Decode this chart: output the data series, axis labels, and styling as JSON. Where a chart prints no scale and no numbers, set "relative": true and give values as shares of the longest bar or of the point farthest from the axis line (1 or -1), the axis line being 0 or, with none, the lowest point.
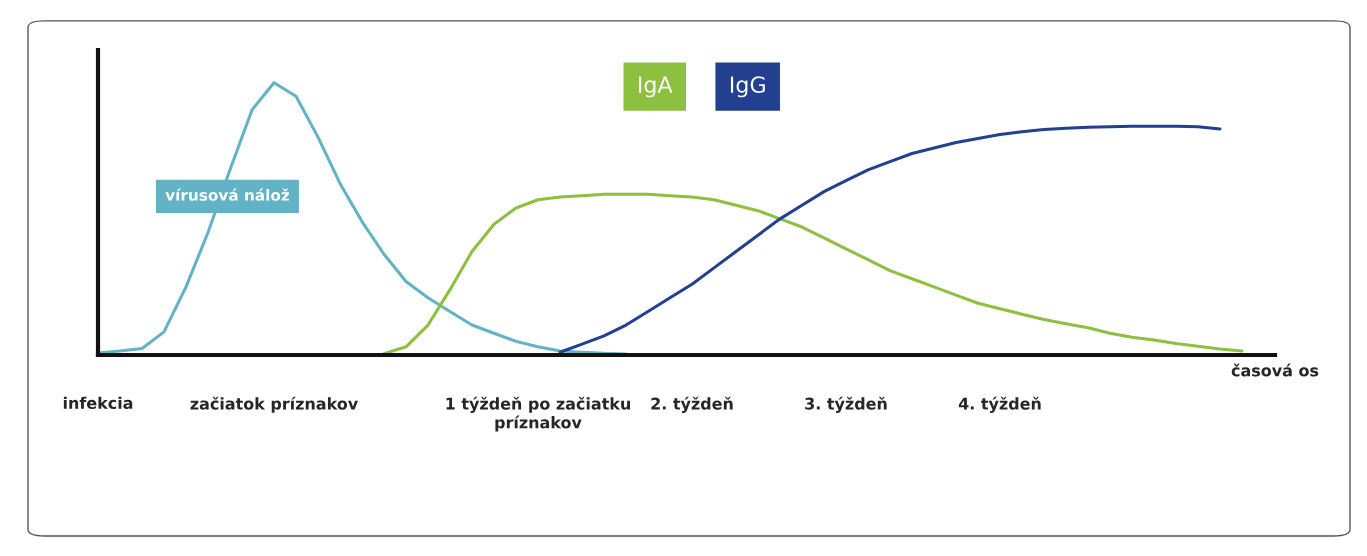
{
  "chart_data": {
    "type": "line",
    "relative": true,
    "xlabel": "časová os",
    "categories": [
      "infekcia",
      null,
      null,
      null,
      null,
      null,
      null,
      null,
      "začiatok príznakov",
      null,
      null,
      null,
      null,
      null,
      null,
      null,
      null,
      null,
      null,
      null,
      "1 týždeň po začiatku\npríznakov",
      null,
      null,
      null,
      null,
      null,
      null,
      "2. týždeň",
      null,
      null,
      null,
      null,
      null,
      null,
      "3. týždeň",
      null,
      null,
      null,
      null,
      null,
      null,
      "4. týždeň",
      null,
      null,
      null,
      null,
      null,
      null,
      null,
      null,
      null,
      null,
      null,
      null
    ],
    "tick_labels": "x",
    "legend": "top",
    "marker": "none",
    "line_style": "solid",
    "series": [
      {
        "name": "vírusová nálož",
        "color": "#62b3c6",
        "values": [
          0.007,
          0.015,
          0.024,
          0.085,
          0.25,
          0.45,
          0.68,
          0.9,
          1.0,
          0.95,
          0.8,
          0.63,
          0.49,
          0.37,
          0.27,
          0.21,
          0.16,
          0.11,
          0.08,
          0.05,
          0.03,
          0.015,
          0.01,
          0.006,
          0.004,
          null,
          null,
          null,
          null,
          null,
          null,
          null,
          null,
          null,
          null,
          null,
          null,
          null,
          null,
          null,
          null,
          null,
          null,
          null,
          null,
          null,
          null,
          null,
          null,
          null,
          null,
          null,
          null,
          null
        ]
      },
      {
        "name": "IgA",
        "color": "#8dc03f",
        "values": [
          null,
          null,
          null,
          null,
          null,
          null,
          null,
          null,
          null,
          null,
          null,
          null,
          null,
          0.005,
          0.03,
          0.11,
          0.24,
          0.38,
          0.48,
          0.54,
          0.57,
          0.58,
          0.585,
          0.59,
          0.59,
          0.59,
          0.585,
          0.58,
          0.57,
          0.55,
          0.53,
          0.5,
          0.47,
          0.43,
          0.39,
          0.35,
          0.31,
          0.28,
          0.25,
          0.22,
          0.19,
          0.17,
          0.15,
          0.13,
          0.115,
          0.1,
          0.08,
          0.065,
          0.055,
          0.042,
          0.032,
          0.022,
          0.015,
          null
        ]
      },
      {
        "name": "IgG",
        "color": "#233f8f",
        "values": [
          null,
          null,
          null,
          null,
          null,
          null,
          null,
          null,
          null,
          null,
          null,
          null,
          null,
          null,
          null,
          null,
          null,
          null,
          null,
          null,
          null,
          0.01,
          0.04,
          0.07,
          0.11,
          0.16,
          0.21,
          0.26,
          0.32,
          0.38,
          0.44,
          0.5,
          0.55,
          0.6,
          0.64,
          0.68,
          0.71,
          0.74,
          0.76,
          0.78,
          0.795,
          0.81,
          0.82,
          0.828,
          0.833,
          0.836,
          0.838,
          0.84,
          0.84,
          0.84,
          0.838,
          0.83,
          null,
          null
        ]
      }
    ]
  }
}
